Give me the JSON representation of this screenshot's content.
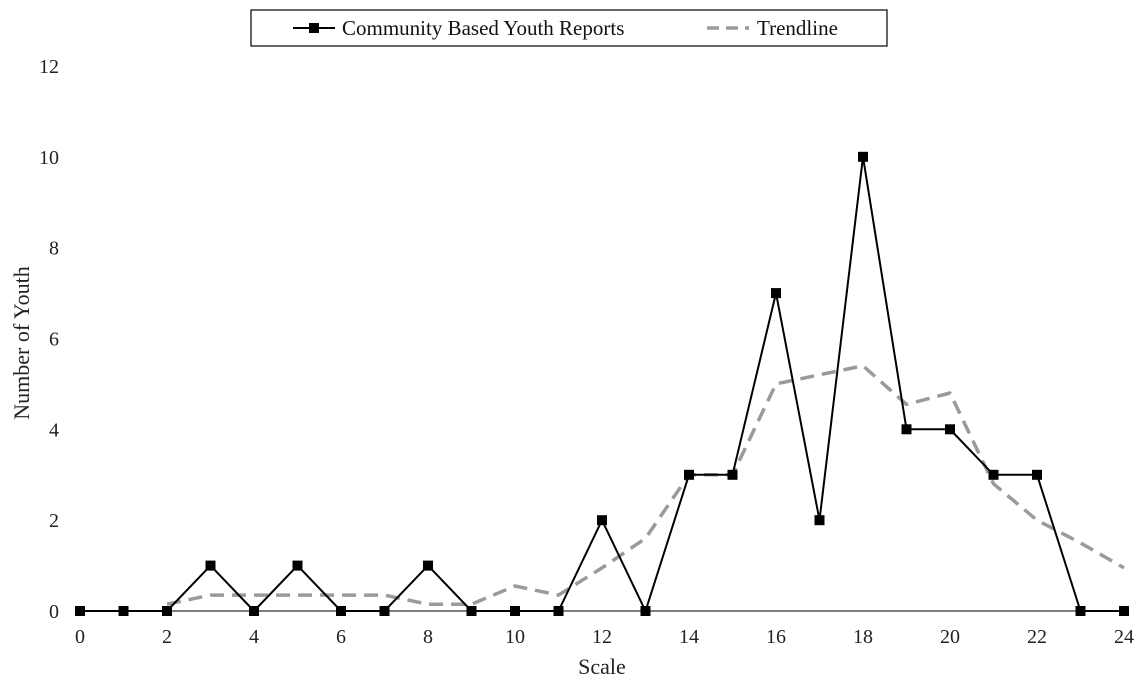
{
  "chart_data": {
    "type": "line",
    "title": "",
    "xlabel": "Scale",
    "ylabel": "Number of Youth",
    "xlim": [
      0,
      24
    ],
    "ylim": [
      0,
      12
    ],
    "x_ticks": [
      0,
      2,
      4,
      6,
      8,
      10,
      12,
      14,
      16,
      18,
      20,
      22,
      24
    ],
    "y_ticks": [
      0,
      2,
      4,
      6,
      8,
      10,
      12
    ],
    "grid": false,
    "legend_position": "top-center",
    "series": [
      {
        "name": "Community Based Youth Reports",
        "style": "solid-with-square-markers",
        "color": "#000000",
        "x": [
          0,
          1,
          2,
          3,
          4,
          5,
          6,
          7,
          8,
          9,
          10,
          11,
          12,
          13,
          14,
          15,
          16,
          17,
          18,
          19,
          20,
          21,
          22,
          23,
          24
        ],
        "values": [
          0,
          0,
          0,
          1,
          0,
          1,
          0,
          0,
          1,
          0,
          0,
          0,
          2,
          0,
          3,
          3,
          7,
          2,
          10,
          4,
          4,
          3,
          3,
          0,
          0
        ]
      },
      {
        "name": "Trendline",
        "style": "dashed",
        "color": "#9a9a9a",
        "x": [
          2,
          3,
          4,
          5,
          6,
          7,
          8,
          9,
          10,
          11,
          12,
          13,
          14,
          15,
          16,
          17,
          18,
          19,
          20,
          21,
          22,
          23,
          24
        ],
        "values": [
          0.15,
          0.35,
          0.35,
          0.35,
          0.35,
          0.35,
          0.15,
          0.15,
          0.55,
          0.35,
          0.95,
          1.6,
          3.0,
          3.0,
          5.0,
          5.2,
          5.4,
          4.55,
          4.8,
          2.8,
          2.0,
          1.5,
          0.95
        ]
      }
    ]
  }
}
